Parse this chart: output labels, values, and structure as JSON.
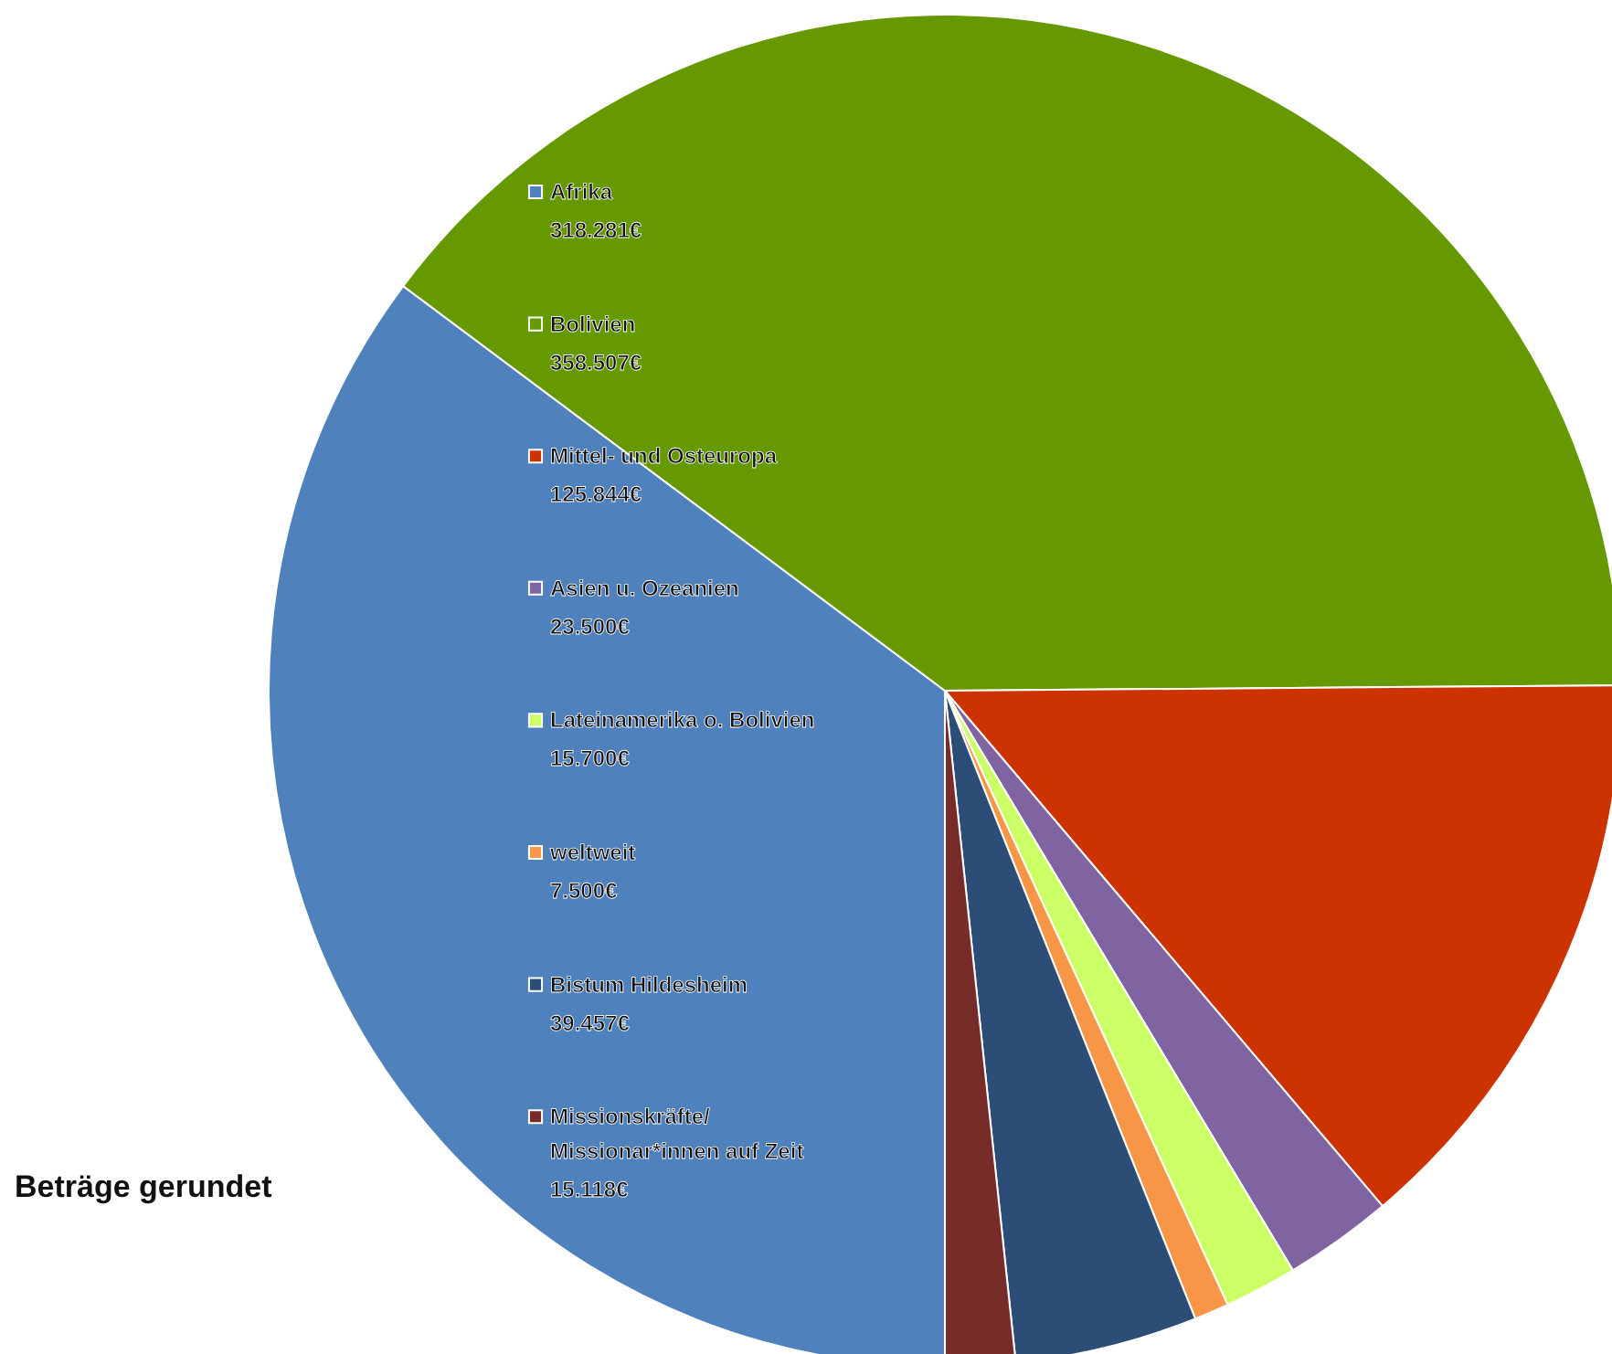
{
  "chart_data": {
    "type": "pie",
    "categories": [
      "Afrika",
      "Bolivien",
      "Mittel- und Osteuropa",
      "Asien u. Ozeanien",
      "Lateinamerika o. Bolivien",
      "weltweit",
      "Bistum Hildesheim",
      "Missionskräfte/\nMissionar*innen auf Zeit"
    ],
    "values": [
      318281,
      358507,
      125844,
      23500,
      15700,
      7500,
      39457,
      15118
    ],
    "value_labels": [
      "318.281€",
      "358.507€",
      "125.844€",
      "23.500€",
      "15.700€",
      "7.500€",
      "39.457€",
      "15.118€"
    ],
    "colors": [
      "#4f81bd",
      "#669900",
      "#cc3300",
      "#8064a2",
      "#ccff66",
      "#f79646",
      "#2c4d75",
      "#772c2a"
    ],
    "legend": "left",
    "annotations": [
      "Beträge gerundet"
    ]
  }
}
